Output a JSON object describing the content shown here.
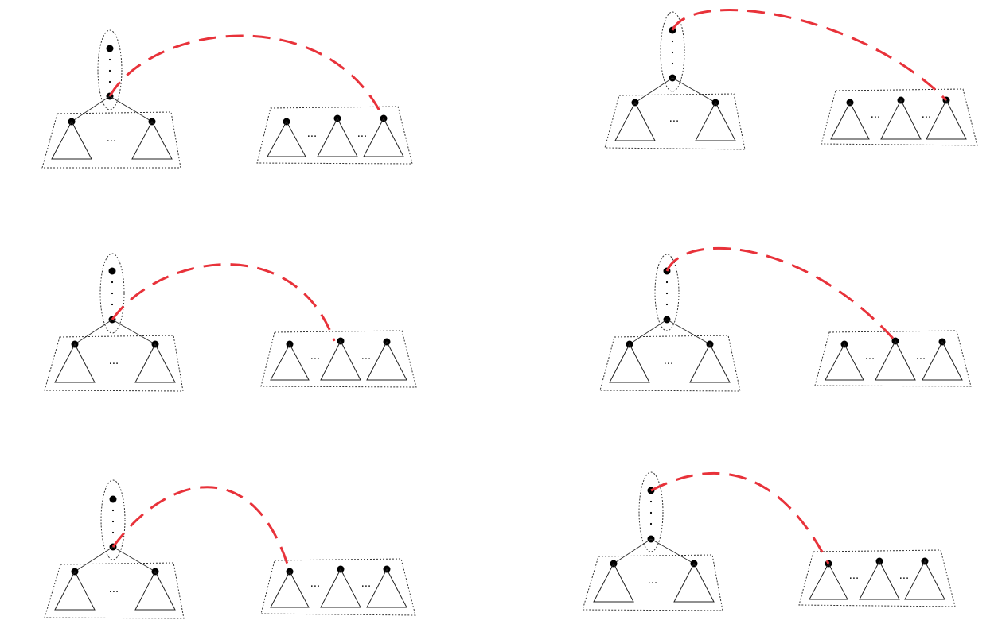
{
  "diagram": {
    "ellipsis": "...",
    "link_color": "#e8323a",
    "panels": [
      {
        "id": "a",
        "source": "bottom",
        "target": "last"
      },
      {
        "id": "b",
        "source": "top",
        "target": "last"
      },
      {
        "id": "c",
        "source": "bottom",
        "target": "middle"
      },
      {
        "id": "d",
        "source": "top",
        "target": "middle"
      },
      {
        "id": "e",
        "source": "bottom",
        "target": "first"
      },
      {
        "id": "f",
        "source": "top",
        "target": "first"
      }
    ]
  }
}
